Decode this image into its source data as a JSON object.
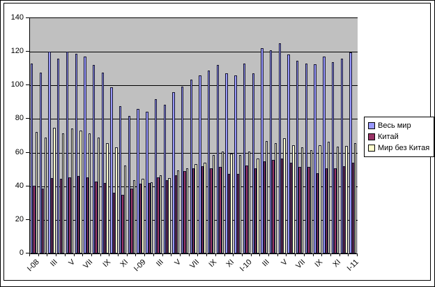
{
  "figure": {
    "background": "#FFFFFF",
    "plot_background": "#C0C0C0",
    "frame_color": "#000000",
    "gridline_color": "#000000"
  },
  "chart_data": {
    "type": "bar",
    "title": "",
    "xlabel": "",
    "ylabel": "",
    "ylim": [
      0,
      140
    ],
    "y_ticks": [
      0,
      20,
      40,
      60,
      80,
      100,
      120,
      140
    ],
    "grid": true,
    "n_categories": 37,
    "x_tick_labels": [
      "I-08",
      "III",
      "V",
      "VII",
      "IX",
      "XI",
      "I-09",
      "III",
      "V",
      "VII",
      "IX",
      "XI",
      "I-10",
      "III",
      "V",
      "VII",
      "IX",
      "XI",
      "I-11"
    ],
    "x_label_every_n_categories": 2,
    "legend_position": "right",
    "series": [
      {
        "name": "Весь мир",
        "color": "#9999FF",
        "values": [
          113,
          107.5,
          120,
          116,
          120,
          119,
          117,
          112,
          107.5,
          99,
          87.5,
          82,
          86,
          84.5,
          92,
          88.5,
          96,
          99.5,
          103.5,
          106,
          109,
          112,
          107,
          106,
          113,
          107,
          122,
          121,
          125,
          118.5,
          114.5,
          113,
          112.5,
          117,
          114,
          116,
          119.5
        ]
      },
      {
        "name": "Китай",
        "color": "#993366",
        "values": [
          40.5,
          38.5,
          45,
          44.5,
          45.5,
          46,
          45.5,
          43,
          42,
          36,
          35,
          38.5,
          41.5,
          42,
          45.5,
          43.5,
          46.5,
          49,
          50.5,
          52,
          50.5,
          51.5,
          47.5,
          47.5,
          52.5,
          50.5,
          55,
          55.5,
          56.5,
          54,
          51.5,
          51.5,
          48,
          50.5,
          50.5,
          52,
          54
        ]
      },
      {
        "name": "Мир без Китая",
        "color": "#FFFFCC",
        "values": [
          72.5,
          69,
          75,
          71.5,
          74.5,
          73,
          71.5,
          69,
          65.5,
          63,
          52.5,
          43.5,
          44.5,
          42.5,
          46.5,
          45,
          49.5,
          50.5,
          53,
          54,
          58.5,
          60.5,
          59.5,
          58.5,
          60.5,
          56.5,
          67,
          65.5,
          68.5,
          64.5,
          63,
          61.5,
          64.5,
          66.5,
          63.5,
          64,
          65.5
        ]
      }
    ]
  },
  "legend": {
    "items": [
      "Весь мир",
      "Китай",
      "Мир без Китая"
    ]
  }
}
